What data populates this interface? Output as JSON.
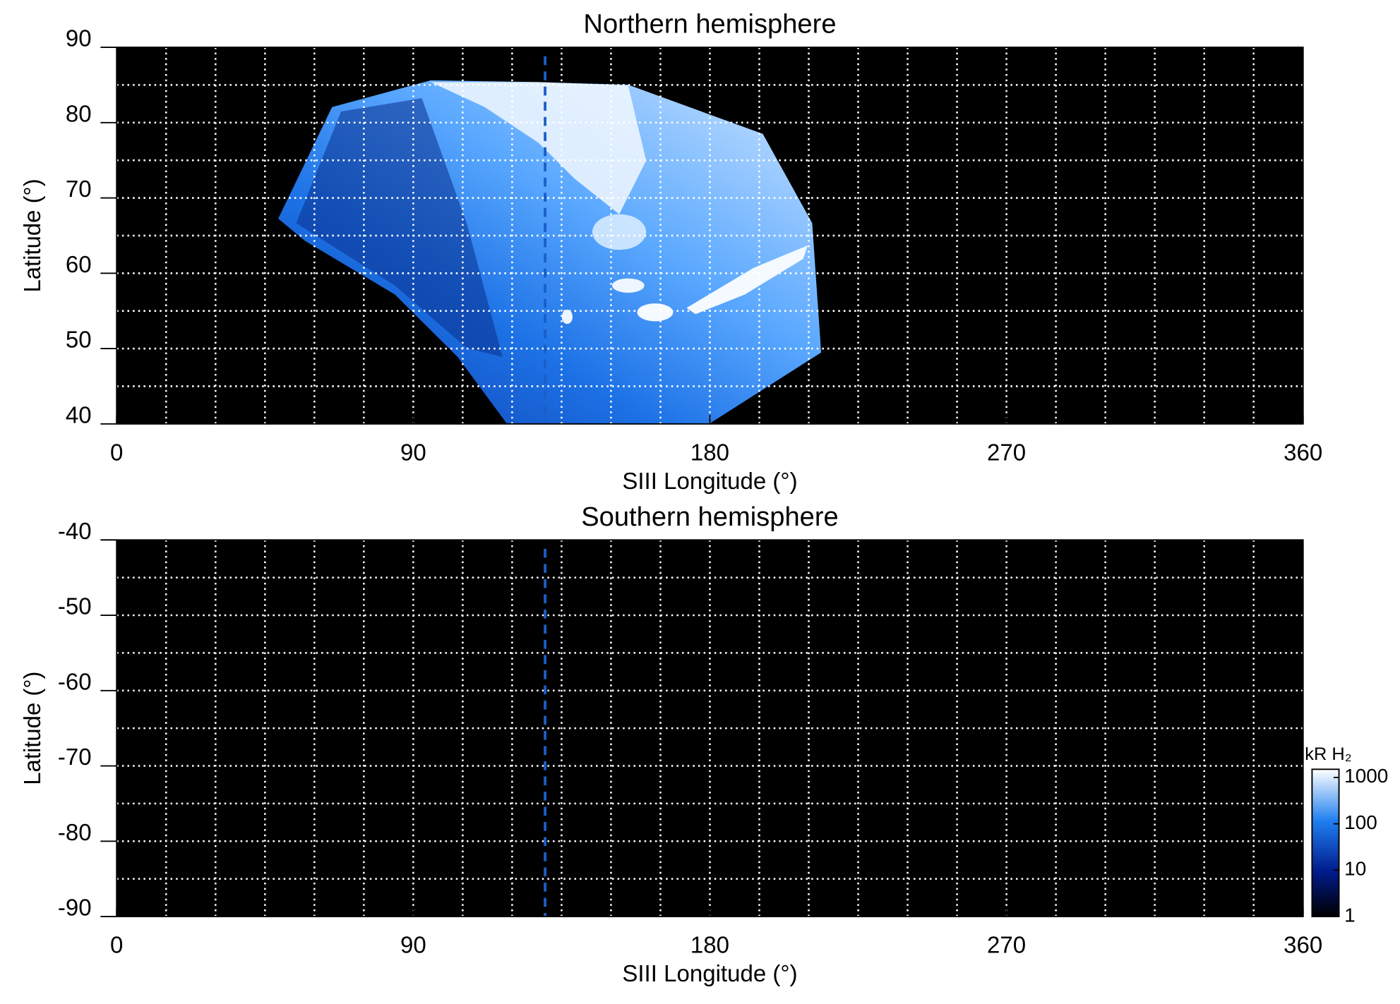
{
  "chart_data": [
    {
      "type": "heatmap",
      "title": "Northern hemisphere",
      "xlabel": "SIII Longitude (°)",
      "ylabel": "Latitude (°)",
      "xlim": [
        0,
        360
      ],
      "ylim": [
        40,
        90
      ],
      "xticks": [
        0,
        90,
        180,
        270,
        360
      ],
      "yticks": [
        40,
        50,
        60,
        70,
        80,
        90
      ],
      "grid": true,
      "xgrid_step": 15,
      "ygrid_step": 5,
      "vline_x": 130,
      "vline_color": "#1a5fc8"
    },
    {
      "type": "heatmap",
      "title": "Southern hemisphere",
      "xlabel": "SIII Longitude (°)",
      "ylabel": "Latitude (°)",
      "xlim": [
        0,
        360
      ],
      "ylim": [
        -90,
        -40
      ],
      "xticks": [
        0,
        90,
        180,
        270,
        360
      ],
      "yticks": [
        -40,
        -50,
        -60,
        -70,
        -80,
        -90
      ],
      "grid": true,
      "xgrid_step": 15,
      "ygrid_step": 5,
      "vline_x": 130,
      "vline_color": "#1a5fc8",
      "colorbar": {
        "label": "kR H₂",
        "log": true,
        "lim": [
          1,
          1500
        ],
        "ticks": [
          1,
          10,
          100,
          1000
        ]
      }
    }
  ]
}
